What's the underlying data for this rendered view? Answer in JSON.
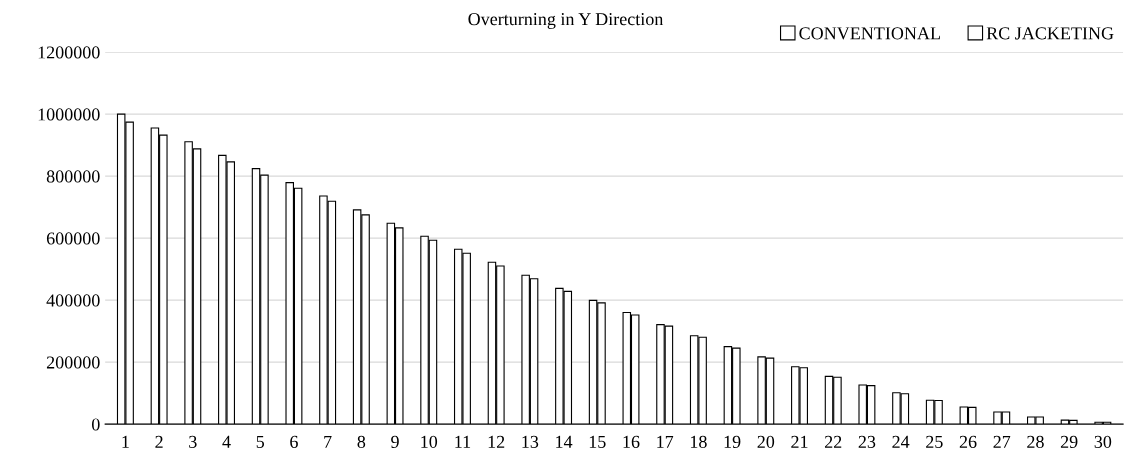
{
  "chart_data": {
    "type": "bar",
    "title": "Overturning in Y Direction",
    "categories": [
      "1",
      "2",
      "3",
      "4",
      "5",
      "6",
      "7",
      "8",
      "9",
      "10",
      "11",
      "12",
      "13",
      "14",
      "15",
      "16",
      "17",
      "18",
      "19",
      "20",
      "21",
      "22",
      "23",
      "24",
      "25",
      "26",
      "27",
      "28",
      "29",
      "30"
    ],
    "series": [
      {
        "name": "CONVENTIONAL",
        "color": "#ffffff",
        "values": [
          1000000,
          955000,
          911000,
          867000,
          824000,
          779000,
          736000,
          691000,
          648000,
          606000,
          564000,
          522000,
          480000,
          438000,
          399000,
          360000,
          321000,
          285000,
          250000,
          217000,
          185000,
          154000,
          126000,
          101000,
          77000,
          55000,
          39000,
          23000,
          13000,
          6000
        ]
      },
      {
        "name": "RC JACKETING",
        "color": "#ffffff",
        "values": [
          974000,
          932000,
          888000,
          846000,
          803000,
          761000,
          719000,
          675000,
          633000,
          593000,
          551000,
          510000,
          469000,
          428000,
          391000,
          352000,
          316000,
          280000,
          245000,
          213000,
          182000,
          151000,
          124000,
          98000,
          76000,
          54000,
          39000,
          23000,
          12000,
          6000
        ]
      }
    ],
    "ylim": [
      0,
      1200000
    ],
    "yticks": [
      0,
      200000,
      400000,
      600000,
      800000,
      1000000,
      1200000
    ],
    "grid": "y",
    "legend": "top right"
  }
}
